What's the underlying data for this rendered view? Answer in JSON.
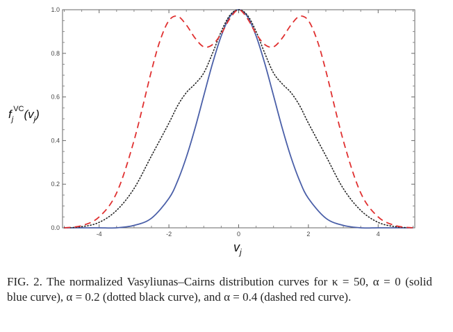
{
  "chart_data": {
    "type": "line",
    "xlim": [
      -5.05,
      5.05
    ],
    "ylim": [
      0,
      1.0
    ],
    "xticks": [
      -4,
      -2,
      0,
      2,
      4
    ],
    "xtick_labels": [
      "-4",
      "-2",
      "0",
      "2",
      "4"
    ],
    "yticks": [
      0.0,
      0.2,
      0.4,
      0.6,
      0.8,
      1.0
    ],
    "ytick_labels": [
      "0.0",
      "0.2",
      "0.4",
      "0.6",
      "0.8",
      "1.0"
    ],
    "grid": false,
    "series": [
      {
        "style": "solid",
        "color": "#4a5fa8",
        "x": [
          -5,
          -4.5,
          -4,
          -3.5,
          -3,
          -2.5,
          -2,
          -1.75,
          -1.5,
          -1.25,
          -1,
          -0.75,
          -0.5,
          -0.25,
          0,
          0.25,
          0.5,
          0.75,
          1,
          1.25,
          1.5,
          1.75,
          2,
          2.5,
          3,
          3.5,
          4,
          4.5,
          5
        ],
        "y": [
          0.0,
          0.0,
          0.0,
          0.0,
          0.011,
          0.044,
          0.135,
          0.215,
          0.324,
          0.457,
          0.606,
          0.753,
          0.88,
          0.969,
          1.0,
          0.969,
          0.88,
          0.753,
          0.606,
          0.457,
          0.324,
          0.215,
          0.135,
          0.044,
          0.011,
          0.0,
          0.0,
          0.0,
          0.0
        ]
      },
      {
        "style": "dotted",
        "color": "#222222",
        "x": [
          -5,
          -4.5,
          -4,
          -3.5,
          -3,
          -2.5,
          -2,
          -1.75,
          -1.5,
          -1.25,
          -1,
          -0.75,
          -0.5,
          -0.25,
          0,
          0.25,
          0.5,
          0.75,
          1,
          1.25,
          1.5,
          1.75,
          2,
          2.5,
          3,
          3.5,
          4,
          4.5,
          5
        ],
        "y": [
          0.0,
          0.005,
          0.025,
          0.08,
          0.18,
          0.33,
          0.48,
          0.56,
          0.62,
          0.66,
          0.71,
          0.8,
          0.9,
          0.975,
          1.0,
          0.975,
          0.9,
          0.8,
          0.71,
          0.66,
          0.62,
          0.56,
          0.48,
          0.33,
          0.18,
          0.08,
          0.025,
          0.005,
          0.0
        ]
      },
      {
        "style": "dashed",
        "color": "#e03030",
        "x": [
          -5,
          -4.5,
          -4,
          -3.5,
          -3,
          -2.5,
          -2.25,
          -2,
          -1.75,
          -1.5,
          -1.25,
          -1,
          -0.75,
          -0.5,
          -0.25,
          0,
          0.25,
          0.5,
          0.75,
          1,
          1.25,
          1.5,
          1.75,
          2,
          2.25,
          2.5,
          3,
          3.5,
          4,
          4.5,
          5
        ],
        "y": [
          0.0,
          0.01,
          0.05,
          0.16,
          0.4,
          0.72,
          0.86,
          0.95,
          0.97,
          0.93,
          0.87,
          0.83,
          0.84,
          0.89,
          0.96,
          1.0,
          0.96,
          0.89,
          0.84,
          0.83,
          0.87,
          0.93,
          0.97,
          0.95,
          0.86,
          0.72,
          0.4,
          0.16,
          0.05,
          0.01,
          0.0
        ]
      }
    ]
  },
  "caption": "FIG. 2. The normalized Vasyliunas–Cairns distribution curves for κ = 50, α = 0 (solid blue curve), α = 0.2 (dotted black curve), and α = 0.4 (dashed red curve)."
}
